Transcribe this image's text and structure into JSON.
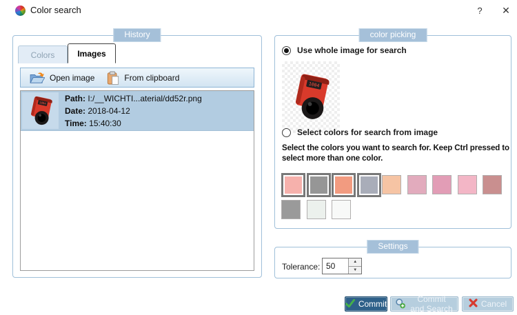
{
  "window": {
    "title": "Color search",
    "help_label": "?",
    "close_label": "✕"
  },
  "history": {
    "group_label": "History",
    "tabs": [
      {
        "label": "Colors",
        "active": false
      },
      {
        "label": "Images",
        "active": true
      }
    ],
    "toolbar": {
      "open_image": "Open image",
      "from_clipboard": "From clipboard"
    },
    "item": {
      "path_label": "Path:",
      "path": "I:/__WICHTI...aterial/dd52r.png",
      "date_label": "Date:",
      "date": "2018-04-12",
      "time_label": "Time:",
      "time": "15:40:30",
      "thumbnail": "red-digital-position-indicator"
    }
  },
  "color_picking": {
    "group_label": "color picking",
    "radios": [
      {
        "label": "Use whole image for search",
        "selected": true
      },
      {
        "label": "Select colors for search from image",
        "selected": false
      }
    ],
    "preview_image": "red-digital-position-indicator",
    "instruction": "Select the colors you want to search for. Keep Ctrl pressed to select more than one color.",
    "swatch_rows": [
      [
        {
          "color": "#f6b1ac",
          "selected": true
        },
        {
          "color": "#969696",
          "selected": true
        },
        {
          "color": "#f29b80",
          "selected": true
        },
        {
          "color": "#a9adb9",
          "selected": true
        },
        {
          "color": "#f6c4a4",
          "selected": false
        },
        {
          "color": "#e2abbd",
          "selected": false
        },
        {
          "color": "#e29db6",
          "selected": false
        },
        {
          "color": "#f3b6c6",
          "selected": false
        },
        {
          "color": "#c98f8f",
          "selected": false
        }
      ],
      [
        {
          "color": "#9a9a9a",
          "selected": false
        },
        {
          "color": "#ecf1ed",
          "selected": false
        },
        {
          "color": "#f8f9f8",
          "selected": false
        }
      ]
    ]
  },
  "settings": {
    "group_label": "Settings",
    "tolerance_label": "Tolerance:",
    "tolerance_value": "50"
  },
  "footer": {
    "commit": "Commit",
    "commit_and_search": "Commit and Search",
    "cancel": "Cancel"
  },
  "theme": {
    "group_label_bg": "#a5c0d9",
    "group_border": "#9fbfd9",
    "selection_bg": "#b2cce1",
    "toolbar_bg": "#d9e8f4",
    "commit_button_bg": "#2e6089",
    "light_button_bg": "#b6cede"
  }
}
